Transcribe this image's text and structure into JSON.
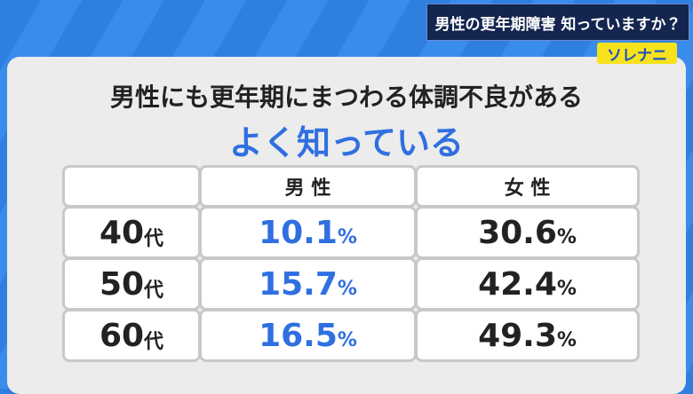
{
  "header": {
    "title": "男性の更年期障害 知っていますか？",
    "badge": "ソレナニ"
  },
  "panel": {
    "title": "男性にも更年期にまつわる体調不良がある",
    "subtitle": "よく知っている"
  },
  "table": {
    "columns": [
      "男 性",
      "女 性"
    ],
    "rows": [
      {
        "age": {
          "num": "40",
          "unit": "代"
        },
        "cells": [
          {
            "num": "10.1",
            "unit": "%"
          },
          {
            "num": "30.6",
            "unit": "%"
          }
        ]
      },
      {
        "age": {
          "num": "50",
          "unit": "代"
        },
        "cells": [
          {
            "num": "15.7",
            "unit": "%"
          },
          {
            "num": "42.4",
            "unit": "%"
          }
        ]
      },
      {
        "age": {
          "num": "60",
          "unit": "代"
        },
        "cells": [
          {
            "num": "16.5",
            "unit": "%"
          },
          {
            "num": "49.3",
            "unit": "%"
          }
        ]
      }
    ]
  }
}
